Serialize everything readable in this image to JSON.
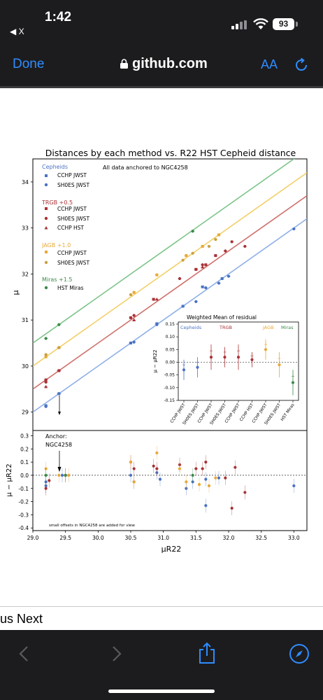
{
  "status_bar": {
    "time": "1:42",
    "back_label": "◀ X",
    "battery": "93"
  },
  "browser": {
    "done_label": "Done",
    "url": "github.com",
    "text_size_label": "AA"
  },
  "figure": {
    "title": "Distances by each method vs. R22 HST Cepheid distance",
    "anchor_note": "All data anchored to NGC4258",
    "legend": {
      "cepheids_title": "Cepheids",
      "cepheids": [
        "CCHP JWST",
        "SH0ES JWST"
      ],
      "trgb_title": "TRGB +0.5",
      "trgb": [
        "CCHP JWST",
        "SH0ES JWST",
        "CCHP HST"
      ],
      "jagb_title": "JAGB +1.0",
      "jagb": [
        "CCHP JWST",
        "SH0ES JWST"
      ],
      "miras_title": "Miras +1.5",
      "miras": [
        "HST Miras"
      ]
    },
    "inset": {
      "title": "Weighted Mean of residual",
      "groups": [
        "Cepheids",
        "TRGB",
        "JAGB",
        "Miras"
      ],
      "ylabel": "μ − μR22"
    },
    "top_ylabel": "μ",
    "bottom_ylabel": "μ − μR22",
    "xlabel": "μR22",
    "anchor_label_1": "Anchor:",
    "anchor_label_2": "NGC4258",
    "offset_note": "small offsets in NGC4258 are added for view"
  },
  "chart_data": [
    {
      "type": "scatter",
      "title": "Distances by each method vs. R22 HST Cepheid distance",
      "ylabel": "μ",
      "xlim": [
        29.0,
        33.2
      ],
      "ylim": [
        28.6,
        34.5
      ],
      "yticks": [
        29,
        30,
        31,
        32,
        33,
        34
      ],
      "colors": {
        "cepheids": "#4a72c4",
        "trgb": "#a83236",
        "jagb": "#e8a838",
        "miras": "#3a8a4a"
      },
      "fit_lines": [
        {
          "name": "Cepheids",
          "offset": 0.0,
          "color": "#8fb0e8"
        },
        {
          "name": "TRGB +0.5",
          "offset": 0.5,
          "color": "#d0706c"
        },
        {
          "name": "JAGB +1.0",
          "offset": 1.0,
          "color": "#f3cf68"
        },
        {
          "name": "Miras +1.5",
          "offset": 1.5,
          "color": "#7cc48a"
        }
      ],
      "series": [
        {
          "name": "CCHP JWST",
          "group": "Cepheids",
          "marker": "square",
          "x": [
            29.2,
            29.4,
            30.5,
            30.9,
            31.3,
            31.6,
            31.9
          ],
          "y": [
            29.14,
            29.4,
            30.5,
            30.92,
            31.3,
            31.72,
            31.9
          ]
        },
        {
          "name": "SH0ES JWST",
          "group": "Cepheids",
          "marker": "circle",
          "x": [
            29.2,
            29.4,
            30.55,
            30.9,
            31.5,
            31.65,
            31.85,
            32.0,
            33.0
          ],
          "y": [
            29.12,
            29.4,
            30.52,
            30.9,
            31.4,
            31.7,
            31.8,
            31.95,
            32.98
          ]
        },
        {
          "name": "CCHP JWST",
          "group": "TRGB +0.5",
          "marker": "square",
          "x": [
            29.2,
            29.4,
            30.5,
            30.85,
            31.5,
            31.65,
            31.8
          ],
          "y": [
            29.7,
            29.9,
            31.05,
            31.45,
            32.1,
            32.2,
            32.4
          ]
        },
        {
          "name": "SH0ES JWST",
          "group": "TRGB +0.5",
          "marker": "circle",
          "x": [
            29.2,
            29.4,
            30.55,
            31.25,
            31.5,
            31.6,
            31.95,
            32.05,
            32.25
          ],
          "y": [
            29.65,
            29.9,
            31.1,
            31.9,
            32.1,
            32.2,
            32.5,
            32.7,
            32.6
          ]
        },
        {
          "name": "CCHP HST",
          "group": "TRGB +0.5",
          "marker": "triangle",
          "x": [
            29.2,
            30.55,
            30.9,
            31.6
          ],
          "y": [
            29.55,
            31.0,
            31.45,
            32.15
          ]
        },
        {
          "name": "CCHP JWST",
          "group": "JAGB +1.0",
          "marker": "square",
          "x": [
            29.2,
            29.4,
            30.55,
            30.9,
            31.35,
            31.6,
            31.85
          ],
          "y": [
            30.2,
            30.4,
            31.6,
            31.98,
            32.4,
            32.6,
            32.85
          ]
        },
        {
          "name": "SH0ES JWST",
          "group": "JAGB +1.0",
          "marker": "circle",
          "x": [
            29.2,
            29.4,
            30.5,
            31.3,
            31.45,
            31.7,
            31.8
          ],
          "y": [
            30.25,
            30.4,
            31.55,
            32.3,
            32.45,
            32.6,
            32.75
          ]
        },
        {
          "name": "HST Miras",
          "group": "Miras +1.5",
          "marker": "circle",
          "x": [
            29.2,
            29.4,
            31.45
          ],
          "y": [
            30.6,
            30.9,
            32.93
          ]
        }
      ]
    },
    {
      "type": "scatter",
      "title": "Weighted Mean of residual",
      "categories": [
        "CCHP JWST",
        "SH0ES JWST",
        "CCHP JWST",
        "SH0ES JWST",
        "CCHP JWST",
        "CCHP HST",
        "CCHP JWST",
        "SH0ES JWST",
        "HST Miras"
      ],
      "groups": [
        "Cepheids",
        "Cepheids",
        "TRGB",
        "TRGB",
        "TRGB",
        "TRGB",
        "JAGB",
        "JAGB",
        "Miras"
      ],
      "values": [
        -0.03,
        -0.02,
        0.02,
        0.02,
        0.02,
        0.01,
        0.05,
        -0.01,
        -0.08
      ],
      "errors": [
        0.04,
        0.04,
        0.05,
        0.04,
        0.05,
        0.03,
        0.04,
        0.05,
        0.05
      ],
      "ylim": [
        -0.15,
        0.15
      ],
      "yticks": [
        -0.15,
        -0.1,
        -0.05,
        0.0,
        0.05,
        0.1,
        0.15
      ]
    },
    {
      "type": "scatter",
      "xlabel": "μR22",
      "ylabel": "μ − μR22",
      "xlim": [
        29.0,
        33.2
      ],
      "ylim": [
        -0.42,
        0.34
      ],
      "xticks": [
        29.0,
        29.5,
        30.0,
        30.5,
        31.0,
        31.5,
        32.0,
        32.5,
        33.0
      ],
      "yticks": [
        -0.4,
        -0.3,
        -0.2,
        -0.1,
        0.0,
        0.1,
        0.2,
        0.3
      ],
      "series": [
        {
          "name": "Cepheids",
          "x": [
            29.2,
            29.2,
            29.45,
            30.5,
            30.55,
            30.9,
            30.95,
            31.35,
            31.45,
            31.65,
            31.65,
            31.85,
            33.0
          ],
          "y": [
            -0.05,
            -0.08,
            0.0,
            0.0,
            -0.05,
            0.02,
            -0.03,
            -0.1,
            -0.05,
            -0.03,
            -0.23,
            -0.02,
            -0.08
          ]
        },
        {
          "name": "TRGB",
          "x": [
            29.2,
            29.25,
            29.5,
            30.5,
            30.55,
            30.85,
            30.9,
            31.25,
            31.5,
            31.6,
            31.65,
            31.95,
            32.05,
            32.1,
            32.25
          ],
          "y": [
            -0.1,
            -0.04,
            0.0,
            0.1,
            0.05,
            0.07,
            0.05,
            0.08,
            0.05,
            0.05,
            0.1,
            -0.02,
            -0.25,
            0.06,
            -0.13
          ]
        },
        {
          "name": "JAGB",
          "x": [
            29.2,
            29.4,
            29.55,
            30.5,
            30.55,
            30.9,
            31.25,
            31.35,
            31.55,
            31.7,
            31.8
          ],
          "y": [
            0.05,
            0.0,
            0.0,
            0.1,
            -0.05,
            0.17,
            0.05,
            -0.05,
            -0.07,
            -0.08,
            -0.02
          ]
        },
        {
          "name": "Miras",
          "x": [
            29.2,
            29.5,
            31.45
          ],
          "y": [
            0.0,
            0.0,
            0.0
          ]
        }
      ]
    }
  ],
  "page": {
    "footer_text": "us Next"
  }
}
